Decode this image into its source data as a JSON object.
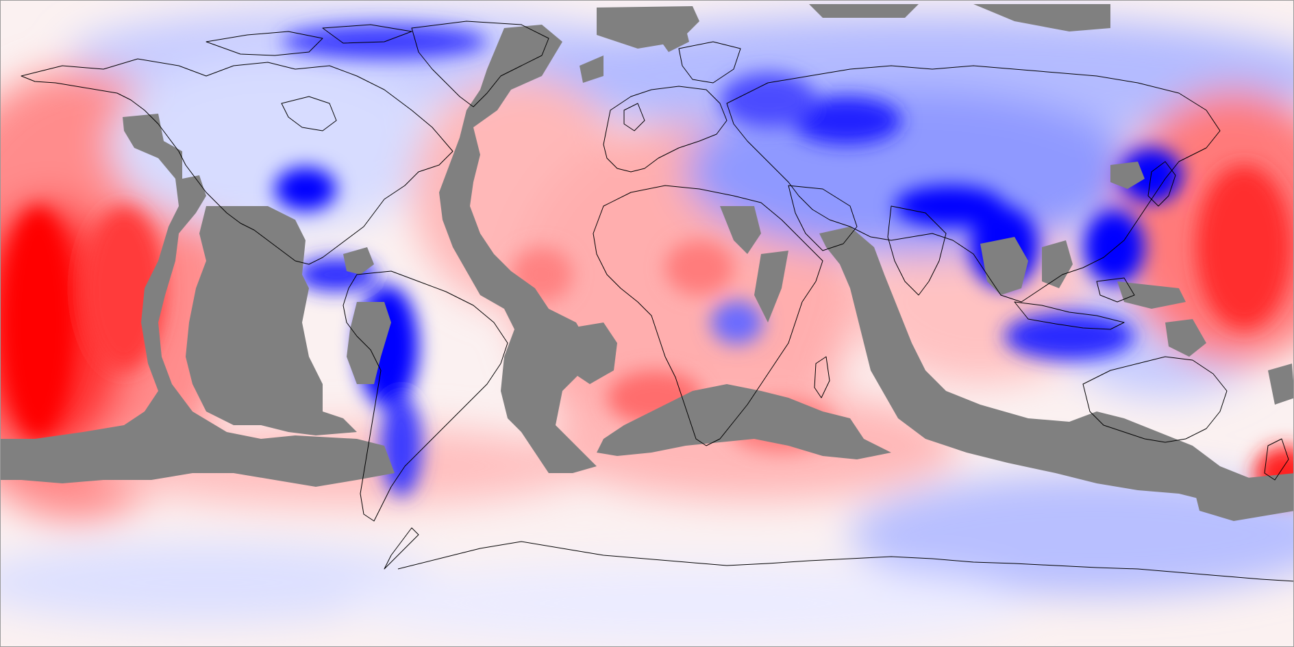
{
  "map": {
    "projection": "equirectangular",
    "extent": {
      "lon": [
        -180,
        180
      ],
      "lat": [
        -90,
        90
      ]
    },
    "colormap": {
      "negative": "#0000ff",
      "neutral": "#ffffff",
      "positive": "#ff0000",
      "missing": "#808080"
    },
    "coastline_color": "#000000",
    "legend": "none",
    "title": ""
  }
}
